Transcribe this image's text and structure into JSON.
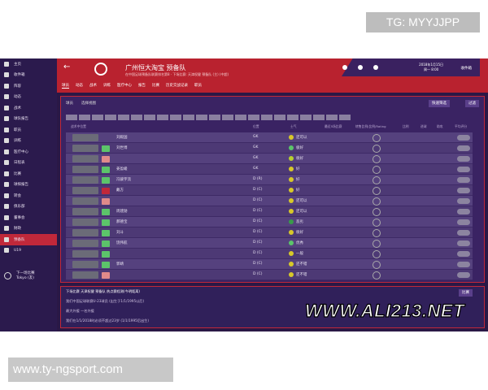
{
  "watermark_top": "TG: MYYJJPP",
  "watermark_bottom": "www.ty-ngsport.com",
  "watermark_logo": "WWW.ALI213.NET",
  "sidebar": {
    "items": [
      "主页",
      "收件箱",
      "阵容",
      "动态",
      "战术",
      "球队报告",
      "职员",
      "训练",
      "医疗中心",
      "日程表",
      "比赛",
      "球探报告",
      "转会",
      "俱乐部",
      "董事会",
      "财政",
      "预备队",
      "U19"
    ],
    "active": 16,
    "next_match_label": "下一场比赛",
    "next_match_value": "Tokyo (友)"
  },
  "header": {
    "title": "广州恒大淘宝 预备队",
    "subtitle": "在中国足球预备队联赛排名第8 · 下场比赛: 天津权健 预备队 (主) (中超)",
    "date": "2018年1月15日",
    "day": "周一 8:00",
    "manager": "收件箱",
    "nav": [
      "球员",
      "动态",
      "战术",
      "训练",
      "医疗中心",
      "报告",
      "比赛",
      "历史交战记录",
      "职员"
    ]
  },
  "toolbar": {
    "left": "球员",
    "select": "选择视图",
    "quick_filter": "快速筛选",
    "filter": "过滤"
  },
  "columns": [
    "战术中位置",
    "位置",
    "士气",
    "最近5场比赛",
    "转售比例/比例/Rating",
    "比例",
    "进球",
    "助攻",
    "平均评分"
  ],
  "rows": [
    {
      "name": "刘殿国",
      "pos": "GK",
      "morale": "还可以",
      "tag": "",
      "mc": "#d7c82a"
    },
    {
      "name": "刘世博",
      "pos": "GK",
      "morale": "极好",
      "tag": "#5cc46a",
      "mc": "#5cc46a"
    },
    {
      "name": "",
      "pos": "GK",
      "morale": "很好",
      "tag": "#e08a8a",
      "mc": "#b8d030"
    },
    {
      "name": "姜盈峻",
      "pos": "GK",
      "morale": "好",
      "tag": "#5cc46a",
      "mc": "#d7c82a"
    },
    {
      "name": "冯骏宇流",
      "pos": "D (R)",
      "morale": "好",
      "tag": "#5cc46a",
      "mc": "#d7c82a"
    },
    {
      "name": "戴方",
      "pos": "D (C)",
      "morale": "好",
      "tag": "#c0283a",
      "mc": "#d7c82a"
    },
    {
      "name": "",
      "pos": "D (C)",
      "morale": "还可以",
      "tag": "#e08a8a",
      "mc": "#d7c82a"
    },
    {
      "name": "周建勋",
      "pos": "D (C)",
      "morale": "还可以",
      "tag": "#5cc46a",
      "mc": "#d7c82a"
    },
    {
      "name": "郝德宝",
      "pos": "D (C)",
      "morale": "恶劣",
      "tag": "#5cc46a",
      "mc": "#3a9a4a"
    },
    {
      "name": "刘斗",
      "pos": "D (C)",
      "morale": "很好",
      "tag": "#5cc46a",
      "mc": "#d7c82a"
    },
    {
      "name": "饶伟航",
      "pos": "D (C)",
      "morale": "优秀",
      "tag": "#5cc46a",
      "mc": "#5cc46a"
    },
    {
      "name": "",
      "pos": "D (C)",
      "morale": "一般",
      "tag": "#5cc46a",
      "mc": "#d7c82a"
    },
    {
      "name": "郭靖",
      "pos": "D (C)",
      "morale": "还不错",
      "tag": "#5cc46a",
      "mc": "#d7c82a"
    },
    {
      "name": "",
      "pos": "D (C)",
      "morale": "还不错",
      "tag": "#e08a8a",
      "mc": "#d7c82a"
    }
  ],
  "bottom": {
    "header": "下场比赛 天津权健 预备队 热点赛程测(今明距离)",
    "lines": [
      "我们中国足球联赛U-23球员 (出生于1/1/1995以后)",
      "最大外援 一名外援",
      "我们在1/1/2018时必须不超过23岁 (1/1/1995后出生)"
    ],
    "select": "比赛"
  }
}
